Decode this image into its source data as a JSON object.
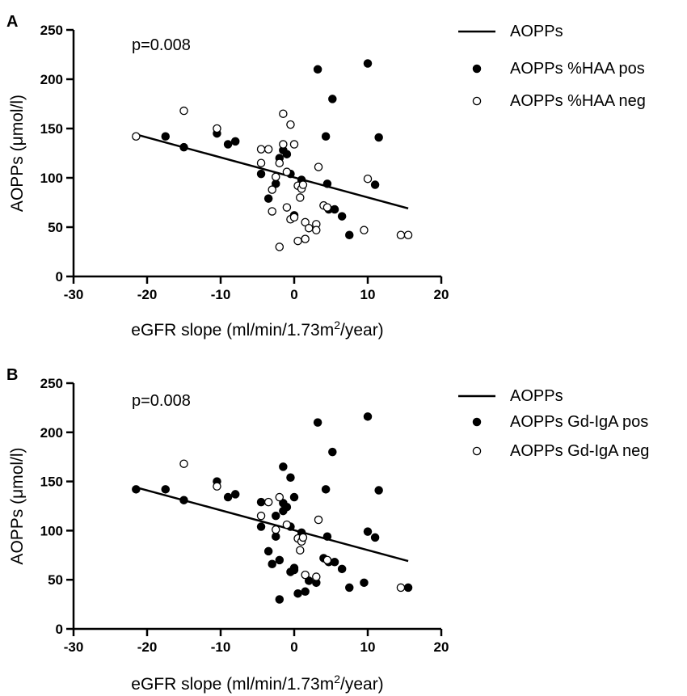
{
  "chart_data": [
    {
      "type": "scatter",
      "panel_label": "A",
      "annotation": "p=0.008",
      "xlabel_main": "eGFR slope (ml/min/1.73m",
      "xlabel_sup": "2",
      "xlabel_end": "/year)",
      "ylabel": "AOPPs (μmol/l)",
      "xlim": [
        -30,
        20
      ],
      "ylim": [
        0,
        250
      ],
      "xticks": [
        "-30",
        "-20",
        "-10",
        "0",
        "10",
        "20"
      ],
      "yticks": [
        "0",
        "50",
        "100",
        "150",
        "200",
        "250"
      ],
      "legend_position": "top-right",
      "regression": {
        "name": "AOPPs",
        "x": [
          -21.5,
          15.5
        ],
        "y": [
          144,
          69
        ]
      },
      "series": [
        {
          "name": "AOPPs %HAA pos",
          "marker": "filled",
          "points": [
            [
              -17.5,
              142
            ],
            [
              -15,
              131
            ],
            [
              -10.5,
              145
            ],
            [
              -9,
              134
            ],
            [
              -8,
              137
            ],
            [
              -4.5,
              104
            ],
            [
              -3.5,
              79
            ],
            [
              -2.5,
              94
            ],
            [
              -2,
              120
            ],
            [
              -1.5,
              128
            ],
            [
              -1,
              124
            ],
            [
              -0.5,
              104
            ],
            [
              0,
              62
            ],
            [
              1,
              98
            ],
            [
              3.2,
              210
            ],
            [
              4.3,
              142
            ],
            [
              4.5,
              94
            ],
            [
              4.7,
              68
            ],
            [
              5.2,
              180
            ],
            [
              5.5,
              68
            ],
            [
              6.5,
              61
            ],
            [
              7.5,
              42
            ],
            [
              10,
              216
            ],
            [
              11,
              93
            ],
            [
              11.5,
              141
            ]
          ]
        },
        {
          "name": "AOPPs %HAA neg",
          "marker": "open",
          "points": [
            [
              -21.5,
              142
            ],
            [
              -15,
              168
            ],
            [
              -10.5,
              150
            ],
            [
              -4.5,
              115
            ],
            [
              -4.5,
              129
            ],
            [
              -3.5,
              129
            ],
            [
              -3,
              66
            ],
            [
              -3,
              88
            ],
            [
              -2.5,
              101
            ],
            [
              -2,
              115
            ],
            [
              -2,
              30
            ],
            [
              -1.5,
              165
            ],
            [
              -1.5,
              134
            ],
            [
              -1,
              70
            ],
            [
              -1,
              106
            ],
            [
              -0.5,
              58
            ],
            [
              -0.5,
              154
            ],
            [
              0,
              134
            ],
            [
              0,
              60
            ],
            [
              0.5,
              92
            ],
            [
              0.5,
              36
            ],
            [
              0.8,
              80
            ],
            [
              1,
              89
            ],
            [
              1.2,
              93
            ],
            [
              1.5,
              38
            ],
            [
              1.5,
              55
            ],
            [
              2,
              49
            ],
            [
              3,
              53
            ],
            [
              3,
              47
            ],
            [
              3.3,
              111
            ],
            [
              4,
              72
            ],
            [
              4.5,
              70
            ],
            [
              9.5,
              47
            ],
            [
              10,
              99
            ],
            [
              14.5,
              42
            ],
            [
              15.5,
              42
            ]
          ]
        }
      ]
    },
    {
      "type": "scatter",
      "panel_label": "B",
      "annotation": "p=0.008",
      "xlabel_main": "eGFR slope (ml/min/1.73m",
      "xlabel_sup": "2",
      "xlabel_end": "/year)",
      "ylabel": "AOPPs (μmol/l)",
      "xlim": [
        -30,
        20
      ],
      "ylim": [
        0,
        250
      ],
      "xticks": [
        "-30",
        "-20",
        "-10",
        "0",
        "10",
        "20"
      ],
      "yticks": [
        "0",
        "50",
        "100",
        "150",
        "200",
        "250"
      ],
      "legend_position": "top-right",
      "regression": {
        "name": "AOPPs",
        "x": [
          -21.5,
          15.5
        ],
        "y": [
          144,
          69
        ]
      },
      "series": [
        {
          "name": "AOPPs Gd-IgA pos",
          "marker": "filled",
          "points": [
            [
              -21.5,
              142
            ],
            [
              -17.5,
              142
            ],
            [
              -15,
              131
            ],
            [
              -10.5,
              150
            ],
            [
              -9,
              134
            ],
            [
              -8,
              137
            ],
            [
              -4.5,
              104
            ],
            [
              -4.5,
              129
            ],
            [
              -3.5,
              79
            ],
            [
              -3,
              66
            ],
            [
              -2.5,
              115
            ],
            [
              -2.5,
              94
            ],
            [
              -2,
              30
            ],
            [
              -2,
              70
            ],
            [
              -1.5,
              165
            ],
            [
              -1.5,
              120
            ],
            [
              -1.5,
              128
            ],
            [
              -1,
              124
            ],
            [
              -0.5,
              104
            ],
            [
              -0.5,
              58
            ],
            [
              -0.5,
              154
            ],
            [
              0,
              134
            ],
            [
              0,
              60
            ],
            [
              0,
              62
            ],
            [
              0.5,
              36
            ],
            [
              1,
              98
            ],
            [
              1.5,
              38
            ],
            [
              2,
              49
            ],
            [
              3,
              47
            ],
            [
              3.2,
              210
            ],
            [
              4,
              72
            ],
            [
              4.3,
              142
            ],
            [
              4.5,
              94
            ],
            [
              4.7,
              68
            ],
            [
              5.2,
              180
            ],
            [
              5.5,
              68
            ],
            [
              6.5,
              61
            ],
            [
              7.5,
              42
            ],
            [
              9.5,
              47
            ],
            [
              10,
              216
            ],
            [
              10,
              99
            ],
            [
              11,
              93
            ],
            [
              11.5,
              141
            ],
            [
              15.5,
              42
            ]
          ]
        },
        {
          "name": "AOPPs Gd-IgA neg",
          "marker": "open",
          "points": [
            [
              -15,
              168
            ],
            [
              -10.5,
              145
            ],
            [
              -4.5,
              115
            ],
            [
              -3.5,
              129
            ],
            [
              -2.5,
              101
            ],
            [
              -2,
              134
            ],
            [
              -1,
              106
            ],
            [
              0.5,
              92
            ],
            [
              0.8,
              80
            ],
            [
              1,
              89
            ],
            [
              1.2,
              93
            ],
            [
              1.5,
              55
            ],
            [
              3,
              53
            ],
            [
              3.3,
              111
            ],
            [
              4.5,
              70
            ],
            [
              14.5,
              42
            ]
          ]
        }
      ]
    }
  ]
}
